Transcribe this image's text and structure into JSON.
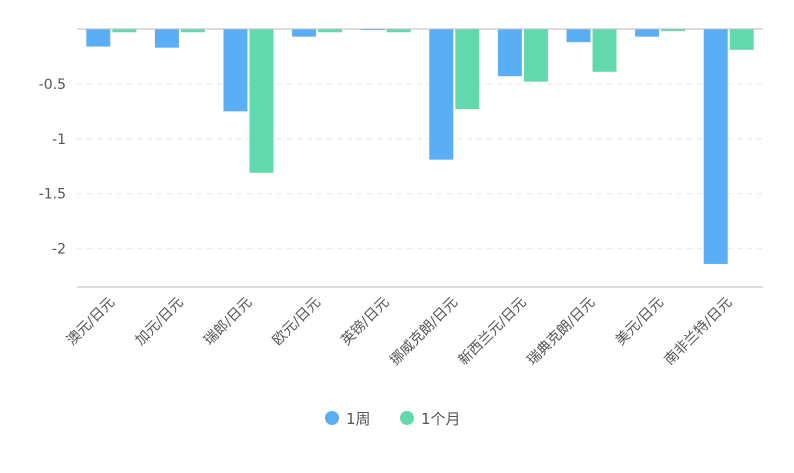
{
  "chart_data": {
    "type": "bar",
    "title": "",
    "xlabel": "",
    "ylabel": "",
    "categories": [
      "澳元/日元",
      "加元/日元",
      "瑞郎/日元",
      "欧元/日元",
      "英镑/日元",
      "挪威克朗/日元",
      "新西兰元/日元",
      "瑞典克朗/日元",
      "美元/日元",
      "南非兰特/日元"
    ],
    "series": [
      {
        "name": "1周",
        "color": "#5aaef5",
        "values": [
          -0.16,
          -0.17,
          -0.75,
          -0.07,
          -0.01,
          -1.19,
          -0.43,
          -0.12,
          -0.07,
          -2.14
        ]
      },
      {
        "name": "1个月",
        "color": "#62d9ad",
        "values": [
          -0.03,
          -0.03,
          -1.31,
          -0.03,
          -0.03,
          -0.73,
          -0.48,
          -0.39,
          -0.02,
          -0.19
        ]
      }
    ],
    "yticks": [
      "-0.5",
      "-1",
      "-1.5",
      "-2"
    ],
    "ytick_values": [
      -0.5,
      -1,
      -1.5,
      -2
    ],
    "ylim": [
      -2.35,
      0
    ],
    "grid": true,
    "legend_position": "bottom-center"
  }
}
